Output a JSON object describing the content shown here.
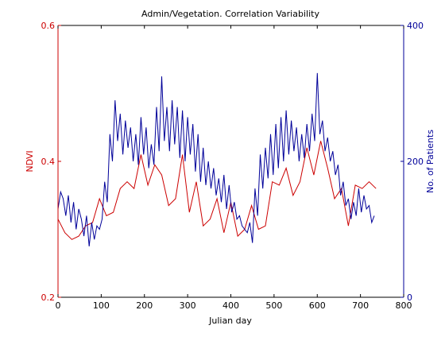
{
  "chart_data": {
    "type": "line",
    "title": "Admin/Vegetation. Correlation Variability",
    "xlabel": "Julian day",
    "ylabel_left": "NDVI",
    "ylabel_right": "No. of Patients",
    "xlim": [
      0,
      800
    ],
    "ylim_left": [
      0.2,
      0.6
    ],
    "ylim_right": [
      0,
      400
    ],
    "x_ticks": [
      "0",
      "100",
      "200",
      "300",
      "400",
      "500",
      "600",
      "700",
      "800"
    ],
    "y_left_ticks": [
      "0.2",
      "0.4",
      "0.6"
    ],
    "y_right_ticks": [
      "0",
      "200",
      "400"
    ],
    "grid": false,
    "colors": {
      "left_axis": "#cc0000",
      "right_axis": "#000099",
      "ndvi": "#cc0000",
      "patients": "#000099"
    },
    "series": [
      {
        "axis": "left",
        "color": "#cc0000",
        "x": [
          0,
          16,
          32,
          48,
          64,
          80,
          96,
          112,
          128,
          144,
          160,
          176,
          192,
          208,
          224,
          240,
          256,
          272,
          288,
          304,
          320,
          336,
          352,
          368,
          384,
          400,
          416,
          432,
          448,
          464,
          480,
          496,
          512,
          528,
          544,
          560,
          576,
          592,
          608,
          624,
          640,
          656,
          672,
          688,
          704,
          720,
          736
        ],
        "values": [
          0.315,
          0.295,
          0.285,
          0.29,
          0.305,
          0.31,
          0.345,
          0.32,
          0.325,
          0.36,
          0.37,
          0.36,
          0.41,
          0.365,
          0.395,
          0.38,
          0.335,
          0.345,
          0.41,
          0.325,
          0.37,
          0.305,
          0.315,
          0.345,
          0.295,
          0.34,
          0.29,
          0.3,
          0.335,
          0.3,
          0.305,
          0.37,
          0.365,
          0.39,
          0.35,
          0.37,
          0.42,
          0.38,
          0.43,
          0.39,
          0.345,
          0.36,
          0.305,
          0.365,
          0.36,
          0.37,
          0.36
        ]
      },
      {
        "axis": "right",
        "color": "#000099",
        "x": [
          0,
          6,
          12,
          18,
          24,
          30,
          36,
          42,
          48,
          54,
          60,
          66,
          72,
          78,
          84,
          90,
          96,
          102,
          108,
          114,
          120,
          126,
          132,
          138,
          144,
          150,
          156,
          162,
          168,
          174,
          180,
          186,
          192,
          198,
          204,
          210,
          216,
          222,
          228,
          234,
          240,
          246,
          252,
          258,
          264,
          270,
          276,
          282,
          288,
          294,
          300,
          306,
          312,
          318,
          324,
          330,
          336,
          342,
          348,
          354,
          360,
          366,
          372,
          378,
          384,
          390,
          396,
          402,
          408,
          414,
          420,
          426,
          432,
          438,
          444,
          450,
          456,
          462,
          468,
          474,
          480,
          486,
          492,
          498,
          504,
          510,
          516,
          522,
          528,
          534,
          540,
          546,
          552,
          558,
          564,
          570,
          576,
          582,
          588,
          594,
          600,
          606,
          612,
          618,
          624,
          630,
          636,
          642,
          648,
          654,
          660,
          666,
          672,
          678,
          684,
          690,
          696,
          702,
          708,
          714,
          720,
          726,
          732
        ],
        "values": [
          130,
          155,
          145,
          120,
          150,
          110,
          140,
          100,
          130,
          115,
          90,
          120,
          75,
          110,
          85,
          105,
          100,
          115,
          170,
          140,
          240,
          200,
          290,
          230,
          270,
          210,
          260,
          220,
          250,
          200,
          240,
          195,
          265,
          210,
          250,
          190,
          225,
          195,
          280,
          215,
          325,
          230,
          280,
          215,
          290,
          225,
          280,
          205,
          275,
          200,
          265,
          210,
          255,
          185,
          240,
          170,
          220,
          165,
          200,
          160,
          190,
          150,
          175,
          140,
          180,
          130,
          165,
          125,
          140,
          115,
          120,
          105,
          100,
          95,
          110,
          80,
          160,
          120,
          210,
          160,
          220,
          175,
          240,
          180,
          255,
          190,
          265,
          200,
          275,
          210,
          260,
          215,
          250,
          200,
          240,
          205,
          255,
          215,
          270,
          230,
          330,
          240,
          260,
          215,
          235,
          200,
          215,
          180,
          195,
          150,
          170,
          135,
          145,
          115,
          140,
          120,
          160,
          125,
          150,
          130,
          135,
          110,
          120
        ]
      }
    ]
  }
}
